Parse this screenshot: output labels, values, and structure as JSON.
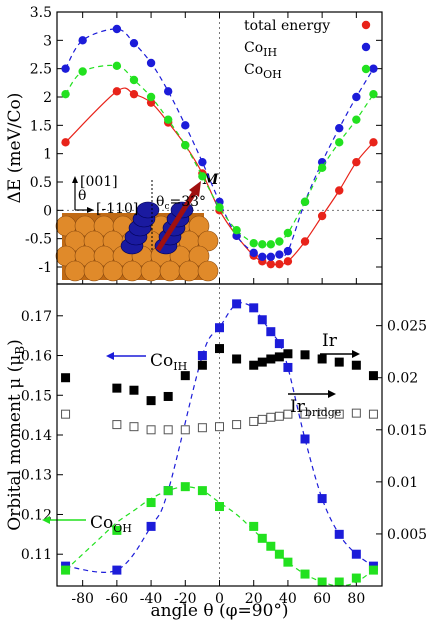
{
  "chart_data": [
    {
      "type": "scatter",
      "ylabel": "ΔE (meV/Co)",
      "xlim": [
        -95,
        95
      ],
      "ylim": [
        -1.3,
        3.5
      ],
      "yticks": [
        -1,
        -0.5,
        0,
        0.5,
        1,
        1.5,
        2,
        2.5,
        3,
        3.5
      ],
      "legend_placement": "top-right",
      "zero_lines": true,
      "series": [
        {
          "name": "total energy",
          "color": "#e8231a",
          "fit_line": "solid",
          "x": [
            -90,
            -60,
            -50,
            -40,
            -30,
            -20,
            -10,
            0,
            10,
            20,
            25,
            30,
            35,
            40,
            50,
            60,
            70,
            80,
            90
          ],
          "y": [
            1.2,
            2.1,
            2.05,
            1.9,
            1.55,
            1.15,
            0.65,
            0.0,
            -0.45,
            -0.8,
            -0.9,
            -0.95,
            -0.95,
            -0.9,
            -0.55,
            -0.1,
            0.35,
            0.85,
            1.2
          ]
        },
        {
          "name": "Co",
          "sub": "IH",
          "color": "#1c1cd9",
          "fit_line": "dashed",
          "x": [
            -90,
            -80,
            -60,
            -50,
            -40,
            -30,
            -20,
            -10,
            0,
            10,
            20,
            25,
            30,
            35,
            40,
            50,
            60,
            70,
            80,
            90
          ],
          "y": [
            2.5,
            3.0,
            3.2,
            2.95,
            2.6,
            2.1,
            1.5,
            0.85,
            0.15,
            -0.45,
            -0.75,
            -0.82,
            -0.82,
            -0.78,
            -0.72,
            0.15,
            0.85,
            1.45,
            2.0,
            2.5
          ]
        },
        {
          "name": "Co",
          "sub": "OH",
          "color": "#22e11f",
          "fit_line": "dashed",
          "x": [
            -90,
            -80,
            -60,
            -50,
            -40,
            -30,
            -20,
            -10,
            0,
            10,
            20,
            25,
            30,
            35,
            40,
            50,
            60,
            70,
            80,
            90
          ],
          "y": [
            2.05,
            2.45,
            2.55,
            2.3,
            2.0,
            1.6,
            1.15,
            0.6,
            0.05,
            -0.35,
            -0.58,
            -0.6,
            -0.6,
            -0.55,
            -0.4,
            0.15,
            0.75,
            1.2,
            1.6,
            2.05
          ]
        }
      ],
      "inset": {
        "arrow_label": "M",
        "angle_label": "θ",
        "angle_sub": "c",
        "angle_value": "=33°",
        "axis_001": "[001]",
        "axis_110": "[-110]"
      }
    },
    {
      "type": "scatter",
      "xlabel": "angle θ (φ=90°)",
      "ylabel": "Orbital moment μ (μ",
      "ylabel_sub": "B",
      "ylabel_end": ")",
      "xlim": [
        -95,
        95
      ],
      "xticks": [
        -80,
        -60,
        -40,
        -20,
        0,
        20,
        40,
        60,
        80
      ],
      "ylim_left": [
        0.102,
        0.178
      ],
      "yticks_left": [
        0.11,
        0.12,
        0.13,
        0.14,
        0.15,
        0.16,
        0.17
      ],
      "ylim_right": [
        0.0,
        0.029
      ],
      "yticks_right": [
        0.005,
        0.01,
        0.015,
        0.02,
        0.025
      ],
      "series": [
        {
          "name": "Co",
          "sub": "IH",
          "axis": "left",
          "color": "#1c1cd9",
          "marker": "filled-square",
          "fit_line": "dashed",
          "label_arrow": "left",
          "x": [
            -90,
            -60,
            -40,
            -30,
            -10,
            0,
            10,
            20,
            25,
            30,
            35,
            40,
            50,
            60,
            70,
            80,
            90
          ],
          "y": [
            0.107,
            0.106,
            0.117,
            0.126,
            0.16,
            0.167,
            0.173,
            0.172,
            0.169,
            0.166,
            0.163,
            0.157,
            0.139,
            0.124,
            0.115,
            0.11,
            0.107
          ]
        },
        {
          "name": "Co",
          "sub": "OH",
          "axis": "left",
          "color": "#22e11f",
          "marker": "filled-square",
          "fit_line": "dashed",
          "label_arrow": "left",
          "x": [
            -90,
            -60,
            -40,
            -30,
            -20,
            -10,
            0,
            20,
            25,
            30,
            35,
            40,
            50,
            60,
            70,
            80,
            90
          ],
          "y": [
            0.106,
            0.116,
            0.123,
            0.126,
            0.127,
            0.126,
            0.122,
            0.117,
            0.114,
            0.112,
            0.11,
            0.108,
            0.105,
            0.103,
            0.103,
            0.104,
            0.106
          ],
          "fit_x": [
            -90,
            -80,
            -70,
            -60,
            -50,
            -40,
            -30,
            -20,
            -10,
            0,
            10,
            20,
            30,
            40,
            50,
            60,
            70,
            80,
            90
          ],
          "fit_y": [
            0.106,
            0.11,
            0.114,
            0.118,
            0.121,
            0.124,
            0.126,
            0.127,
            0.126,
            0.123,
            0.12,
            0.116,
            0.112,
            0.108,
            0.105,
            0.103,
            0.102,
            0.103,
            0.106
          ]
        },
        {
          "name": "Ir",
          "axis": "right",
          "color": "#000000",
          "marker": "filled-square",
          "label_arrow": "right",
          "x": [
            -90,
            -60,
            -50,
            -40,
            -30,
            -20,
            -10,
            0,
            10,
            20,
            25,
            30,
            35,
            40,
            50,
            60,
            70,
            80,
            90
          ],
          "y": [
            0.02,
            0.019,
            0.0188,
            0.0178,
            0.0182,
            0.0202,
            0.0212,
            0.0228,
            0.0218,
            0.0212,
            0.0215,
            0.0218,
            0.022,
            0.0223,
            0.0222,
            0.0218,
            0.0215,
            0.0212,
            0.0202
          ]
        },
        {
          "name": "Ir",
          "sub": "bridge",
          "axis": "right",
          "color": "#444444",
          "marker": "open-square",
          "label_arrow": "right",
          "x": [
            -90,
            -60,
            -50,
            -40,
            -30,
            -20,
            -10,
            0,
            10,
            20,
            25,
            30,
            35,
            40,
            50,
            60,
            70,
            80,
            90
          ],
          "y": [
            0.0165,
            0.0155,
            0.0153,
            0.015,
            0.015,
            0.015,
            0.0152,
            0.0153,
            0.0155,
            0.0158,
            0.016,
            0.0162,
            0.0163,
            0.0165,
            0.0165,
            0.0165,
            0.0165,
            0.0166,
            0.0165
          ]
        }
      ]
    }
  ]
}
